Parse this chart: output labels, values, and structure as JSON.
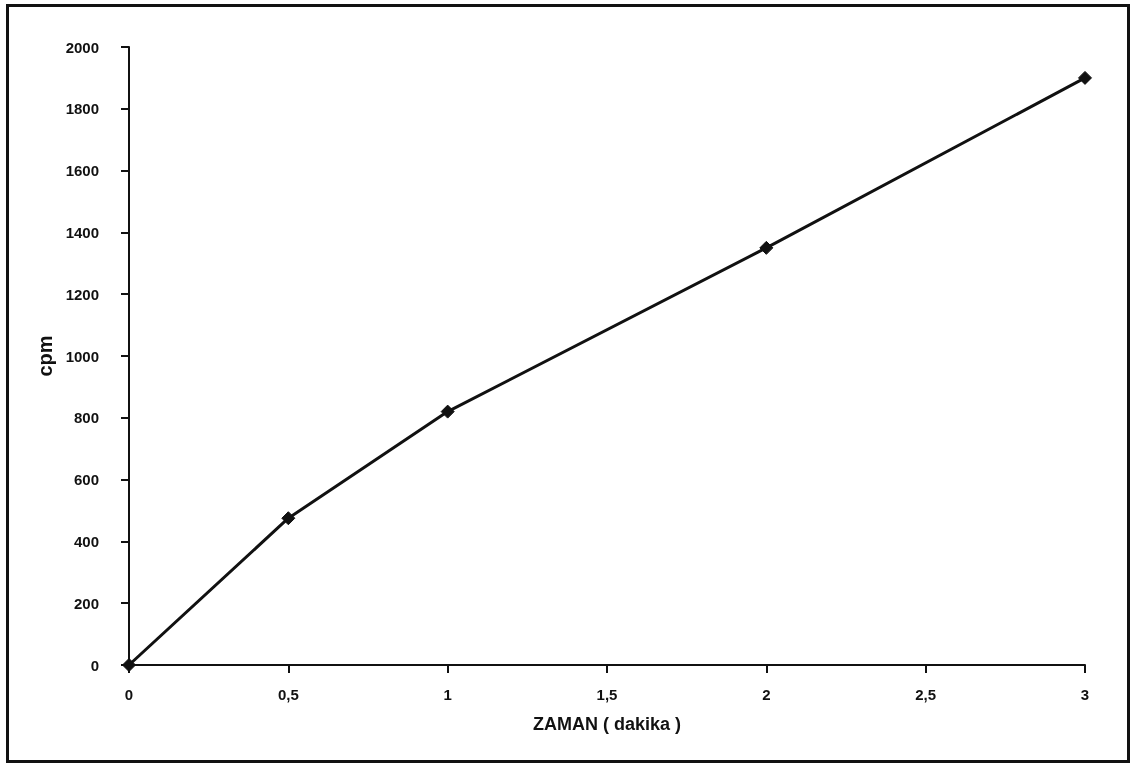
{
  "chart_data": {
    "type": "line",
    "xlabel": "ZAMAN ( dakika )",
    "ylabel": "cpm",
    "x": [
      0,
      0.5,
      1,
      2,
      3
    ],
    "series": [
      {
        "color": "#111111",
        "values": [
          0,
          475,
          820,
          1350,
          1900
        ]
      }
    ],
    "xlim": [
      0,
      3
    ],
    "xticks": [
      0,
      {
        "value": 0.5,
        "label": "0,5"
      },
      1,
      {
        "value": 1.5,
        "label": "1,5"
      },
      2,
      {
        "value": 2.5,
        "label": "2,5"
      },
      3
    ],
    "ylim": [
      0,
      2000
    ],
    "yticks": [
      0,
      200,
      400,
      600,
      800,
      1000,
      1200,
      1400,
      1600,
      1800,
      2000
    ],
    "marker": "diamond",
    "line_style": "solid"
  }
}
